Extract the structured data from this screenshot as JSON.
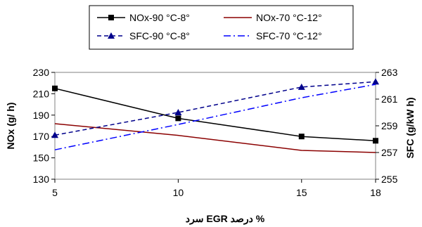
{
  "chart_data": {
    "type": "line",
    "x": [
      5,
      10,
      15,
      18
    ],
    "x_tick_labels": [
      "5",
      "10",
      "15",
      "18"
    ],
    "xlabel": "% درصد EGR سرد",
    "ylabel_left": "NOx (g/ h)",
    "ylabel_right": "SFC (g/kW h)",
    "ylim_left": [
      130,
      230
    ],
    "ylim_right": [
      255,
      263
    ],
    "yticks_left": [
      "130",
      "150",
      "170",
      "190",
      "210",
      "230"
    ],
    "yticks_right": [
      "255",
      "257",
      "259",
      "261",
      "263"
    ],
    "grid": false,
    "legend_position": "top-center",
    "series": [
      {
        "name": "NOx-90 °C-8°",
        "axis": "left",
        "values": [
          215,
          187,
          170,
          166
        ],
        "color": "#000000",
        "line": "solid",
        "marker": "square"
      },
      {
        "name": "NOx-70 °C-12°",
        "axis": "left",
        "values": [
          182,
          171,
          157,
          155
        ],
        "color": "#8b0000",
        "line": "solid",
        "marker": "none"
      },
      {
        "name": "SFC-90 °C-8°",
        "axis": "right",
        "values": [
          258.3,
          260.0,
          261.9,
          262.3
        ],
        "color": "#00008b",
        "line": "dashed",
        "marker": "triangle"
      },
      {
        "name": "SFC-70 °C-12°",
        "axis": "right",
        "values": [
          257.2,
          259.1,
          261.1,
          262.1
        ],
        "color": "#0000ff",
        "line": "dashdot",
        "marker": "none"
      }
    ]
  }
}
